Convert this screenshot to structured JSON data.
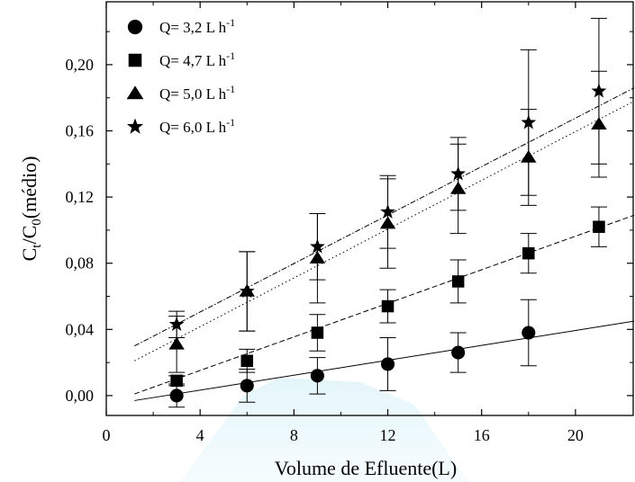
{
  "chart_data": {
    "type": "scatter",
    "xlabel": "Volume de Efluente(L)",
    "ylabel_main": "C",
    "ylabel_sub1": "t",
    "ylabel_mid": "/C",
    "ylabel_sub2": "0",
    "ylabel_tail": "(médio)",
    "xlim": [
      0,
      22.5
    ],
    "ylim": [
      -0.012,
      0.238
    ],
    "xticks": [
      0,
      4,
      8,
      12,
      16,
      20
    ],
    "xtick_labels": [
      "0",
      "4",
      "8",
      "12",
      "16",
      "20"
    ],
    "yticks": [
      0.0,
      0.04,
      0.08,
      0.12,
      0.16,
      0.2
    ],
    "ytick_labels": [
      "0,00",
      "0,04",
      "0,08",
      "0,12",
      "0,16",
      "0,20"
    ],
    "grid": false,
    "legend_position": "top-left",
    "series": [
      {
        "name": "Q= 3,2 L h",
        "unit_exponent": "-1",
        "marker": "circle",
        "line_style": "solid",
        "x": [
          3,
          6,
          9,
          12,
          15,
          18
        ],
        "y": [
          0.0,
          0.006,
          0.012,
          0.019,
          0.026,
          0.038
        ],
        "err": [
          0.007,
          0.01,
          0.011,
          0.016,
          0.012,
          0.02
        ],
        "fit": {
          "x": [
            1.2,
            22.5
          ],
          "y": [
            -0.003,
            0.045
          ]
        }
      },
      {
        "name": "Q= 4,7 L h",
        "unit_exponent": "-1",
        "marker": "square",
        "line_style": "dashed",
        "x": [
          3,
          6,
          9,
          12,
          15,
          18,
          21
        ],
        "y": [
          0.009,
          0.021,
          0.038,
          0.054,
          0.069,
          0.086,
          0.102
        ],
        "err": [
          0.003,
          0.007,
          0.011,
          0.01,
          0.013,
          0.012,
          0.012
        ],
        "fit": {
          "x": [
            1.2,
            22.5
          ],
          "y": [
            0.001,
            0.109
          ]
        }
      },
      {
        "name": "Q= 5,0 L h",
        "unit_exponent": "-1",
        "marker": "triangle",
        "line_style": "dotted",
        "x": [
          3,
          6,
          9,
          12,
          15,
          18,
          21
        ],
        "y": [
          0.031,
          0.063,
          0.083,
          0.104,
          0.125,
          0.144,
          0.164
        ],
        "err": [
          0.017,
          0.024,
          0.027,
          0.027,
          0.027,
          0.029,
          0.032
        ],
        "fit": {
          "x": [
            1.2,
            22.5
          ],
          "y": [
            0.021,
            0.178
          ]
        }
      },
      {
        "name": "Q= 6,0 L h",
        "unit_exponent": "-1",
        "marker": "star",
        "line_style": "dashdot",
        "x": [
          3,
          6,
          9,
          12,
          15,
          18,
          21
        ],
        "y": [
          0.043,
          0.063,
          0.09,
          0.111,
          0.134,
          0.165,
          0.184
        ],
        "err": [
          0.008,
          0.024,
          0.02,
          0.022,
          0.022,
          0.044,
          0.044
        ],
        "fit": {
          "x": [
            1.2,
            22.5
          ],
          "y": [
            0.03,
            0.186
          ]
        }
      }
    ]
  }
}
